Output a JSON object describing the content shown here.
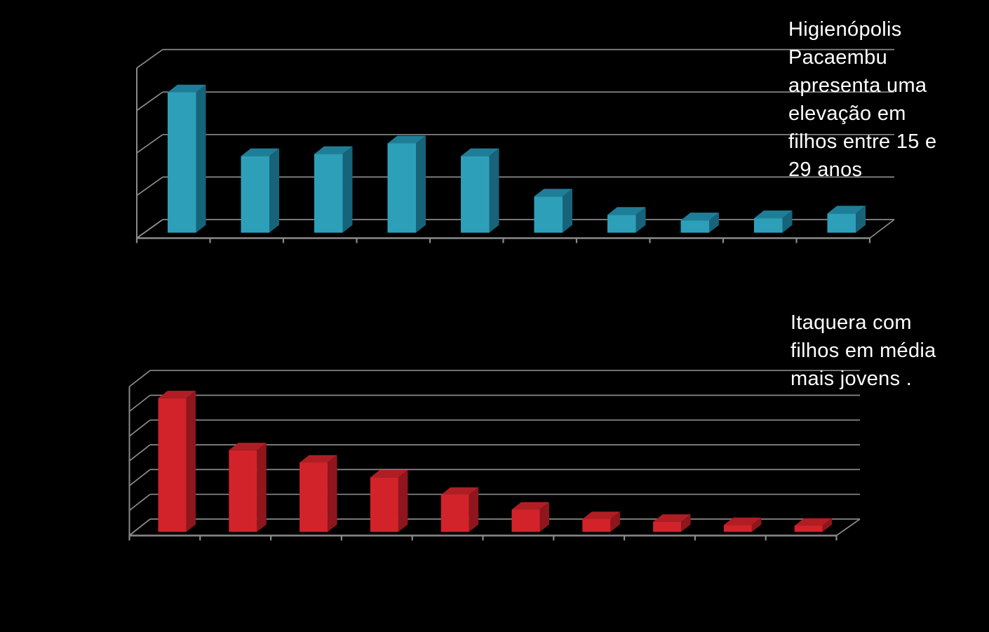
{
  "page": {
    "background_color": "#000000",
    "grid_color": "#8A8A8A",
    "text_color": "#FFFFFF"
  },
  "chart_data": [
    {
      "type": "bar",
      "projection": "3d",
      "title": "",
      "xlabel": "",
      "ylabel": "",
      "legend": "none",
      "categories": [
        "",
        "",
        "",
        "",
        "",
        "",
        "",
        "",
        "",
        ""
      ],
      "values": [
        3.3,
        1.8,
        1.85,
        2.1,
        1.8,
        0.85,
        0.42,
        0.29,
        0.34,
        0.45
      ],
      "value_scale": "y-axis gridline intervals (tick labels not visible in image)",
      "ylim": [
        0,
        4
      ],
      "gridline_count": 5,
      "x_tick_count": 11,
      "grid": true,
      "bar_colors": {
        "front": "#2E9FB9",
        "top": "#1F7E97",
        "side": "#17637A"
      },
      "grid_color": "#8A8A8A",
      "annotation": "Higienópolis Pacaembu apresenta uma elevação em filhos entre 15 e 29 anos",
      "annotation_lines": [
        "Higienópolis",
        "Pacaembu",
        "apresenta uma",
        "elevação em",
        "filhos entre 15 e",
        "29 anos"
      ]
    },
    {
      "type": "bar",
      "projection": "3d",
      "title": "",
      "xlabel": "",
      "ylabel": "",
      "legend": "none",
      "categories": [
        "",
        "",
        "",
        "",
        "",
        "",
        "",
        "",
        "",
        ""
      ],
      "values": [
        5.4,
        3.3,
        2.8,
        2.2,
        1.5,
        0.9,
        0.52,
        0.41,
        0.28,
        0.25
      ],
      "value_scale": "y-axis gridline intervals (tick labels not visible in image)",
      "ylim": [
        0,
        6
      ],
      "gridline_count": 7,
      "x_tick_count": 11,
      "grid": true,
      "bar_colors": {
        "front": "#D2232A",
        "top": "#B01E24",
        "side": "#8E161C"
      },
      "grid_color": "#8A8A8A",
      "annotation": "Itaquera com filhos em média mais jovens .",
      "annotation_lines": [
        "Itaquera com",
        "filhos em média",
        "mais jovens ."
      ]
    }
  ]
}
